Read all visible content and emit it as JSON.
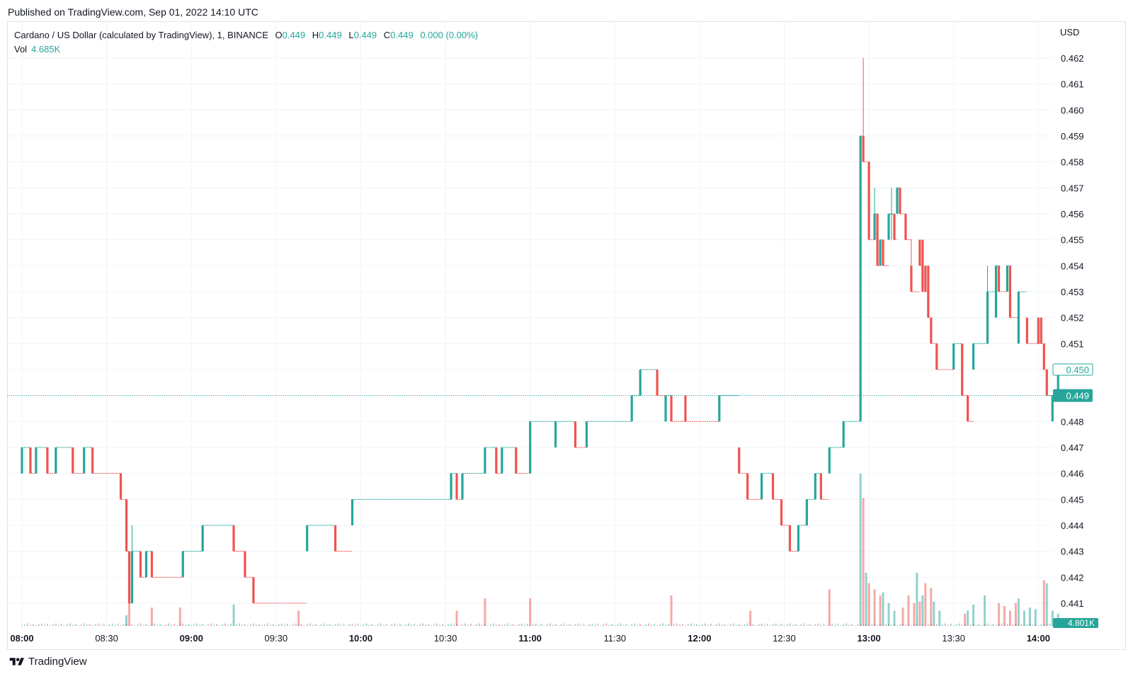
{
  "header": {
    "published": "Published on TradingView.com, Sep 01, 2022 14:10 UTC"
  },
  "legend": {
    "symbol": "Cardano / US Dollar (calculated by TradingView), 1, BINANCE",
    "o_label": "O",
    "o_value": "0.449",
    "h_label": "H",
    "h_value": "0.449",
    "l_label": "L",
    "l_value": "0.449",
    "c_label": "C",
    "c_value": "0.449",
    "change": "0.000 (0.00%)",
    "vol_label": "Vol",
    "vol_value": "4.685K"
  },
  "axis": {
    "currency": "USD",
    "last_price_label": "0.449",
    "prev_price_label": "0.450",
    "volume_label": "4.801K"
  },
  "footer": {
    "brand": "TradingView"
  },
  "colors": {
    "up": "#26a69a",
    "down": "#ef5350",
    "grid": "#f0f3fa"
  },
  "chart_data": {
    "type": "candlestick",
    "interval": "1 minute",
    "ylim": [
      0.4405,
      0.4625
    ],
    "y_ticks": [
      "0.441",
      "0.442",
      "0.443",
      "0.444",
      "0.445",
      "0.446",
      "0.447",
      "0.448",
      "0.449",
      "0.450",
      "0.451",
      "0.452",
      "0.453",
      "0.454",
      "0.455",
      "0.456",
      "0.457",
      "0.458",
      "0.459",
      "0.460",
      "0.461",
      "0.462"
    ],
    "x_ticks": [
      {
        "t": "08:00",
        "bold": true
      },
      {
        "t": "08:30",
        "bold": false
      },
      {
        "t": "09:00",
        "bold": true
      },
      {
        "t": "09:30",
        "bold": false
      },
      {
        "t": "10:00",
        "bold": true
      },
      {
        "t": "10:30",
        "bold": false
      },
      {
        "t": "11:00",
        "bold": true
      },
      {
        "t": "11:30",
        "bold": false
      },
      {
        "t": "12:00",
        "bold": true
      },
      {
        "t": "12:30",
        "bold": false
      },
      {
        "t": "13:00",
        "bold": true
      },
      {
        "t": "13:30",
        "bold": false
      },
      {
        "t": "14:00",
        "bold": true
      }
    ],
    "last_price": 0.449,
    "candles": [
      [
        0,
        0.446,
        0.447,
        0.446,
        0.447
      ],
      [
        3,
        0.447,
        0.447,
        0.446,
        0.446
      ],
      [
        5,
        0.446,
        0.447,
        0.446,
        0.447
      ],
      [
        9,
        0.447,
        0.447,
        0.446,
        0.446
      ],
      [
        12,
        0.446,
        0.447,
        0.446,
        0.447
      ],
      [
        18,
        0.447,
        0.447,
        0.446,
        0.446
      ],
      [
        22,
        0.446,
        0.447,
        0.446,
        0.447
      ],
      [
        25,
        0.447,
        0.447,
        0.446,
        0.446
      ],
      [
        35,
        0.446,
        0.446,
        0.445,
        0.445
      ],
      [
        37,
        0.445,
        0.445,
        0.443,
        0.443
      ],
      [
        38,
        0.443,
        0.443,
        0.441,
        0.441
      ],
      [
        39,
        0.441,
        0.444,
        0.441,
        0.443
      ],
      [
        42,
        0.443,
        0.443,
        0.442,
        0.442
      ],
      [
        44,
        0.442,
        0.443,
        0.442,
        0.443
      ],
      [
        46,
        0.443,
        0.443,
        0.442,
        0.442
      ],
      [
        57,
        0.442,
        0.443,
        0.442,
        0.443
      ],
      [
        64,
        0.443,
        0.444,
        0.443,
        0.444
      ],
      [
        75,
        0.444,
        0.444,
        0.443,
        0.443
      ],
      [
        79,
        0.443,
        0.443,
        0.442,
        0.442
      ],
      [
        82,
        0.442,
        0.442,
        0.441,
        0.441
      ],
      [
        101,
        0.443,
        0.444,
        0.443,
        0.444
      ],
      [
        111,
        0.444,
        0.444,
        0.443,
        0.443
      ],
      [
        117,
        0.444,
        0.445,
        0.444,
        0.445
      ],
      [
        152,
        0.445,
        0.446,
        0.445,
        0.446
      ],
      [
        154,
        0.446,
        0.446,
        0.445,
        0.445
      ],
      [
        156,
        0.445,
        0.446,
        0.445,
        0.446
      ],
      [
        164,
        0.446,
        0.447,
        0.446,
        0.447
      ],
      [
        168,
        0.447,
        0.447,
        0.446,
        0.446
      ],
      [
        170,
        0.446,
        0.447,
        0.446,
        0.447
      ],
      [
        175,
        0.447,
        0.447,
        0.446,
        0.446
      ],
      [
        180,
        0.446,
        0.448,
        0.446,
        0.448
      ],
      [
        189,
        0.447,
        0.448,
        0.447,
        0.448
      ],
      [
        196,
        0.448,
        0.448,
        0.447,
        0.447
      ],
      [
        200,
        0.447,
        0.448,
        0.447,
        0.448
      ],
      [
        216,
        0.448,
        0.449,
        0.448,
        0.449
      ],
      [
        219,
        0.449,
        0.45,
        0.449,
        0.45
      ],
      [
        225,
        0.45,
        0.45,
        0.449,
        0.449
      ],
      [
        228,
        0.448,
        0.449,
        0.448,
        0.449
      ],
      [
        230,
        0.449,
        0.449,
        0.448,
        0.448
      ],
      [
        235,
        0.449,
        0.449,
        0.448,
        0.448
      ],
      [
        247,
        0.448,
        0.449,
        0.448,
        0.449
      ],
      [
        254,
        0.447,
        0.447,
        0.446,
        0.446
      ],
      [
        257,
        0.446,
        0.446,
        0.445,
        0.445
      ],
      [
        262,
        0.445,
        0.446,
        0.445,
        0.446
      ],
      [
        266,
        0.446,
        0.446,
        0.445,
        0.445
      ],
      [
        269,
        0.445,
        0.445,
        0.444,
        0.444
      ],
      [
        272,
        0.444,
        0.444,
        0.443,
        0.443
      ],
      [
        275,
        0.443,
        0.444,
        0.443,
        0.444
      ],
      [
        278,
        0.444,
        0.445,
        0.444,
        0.445
      ],
      [
        281,
        0.445,
        0.446,
        0.445,
        0.446
      ],
      [
        283,
        0.446,
        0.446,
        0.445,
        0.445
      ],
      [
        286,
        0.446,
        0.447,
        0.446,
        0.447
      ],
      [
        291,
        0.447,
        0.448,
        0.447,
        0.448
      ],
      [
        297,
        0.448,
        0.459,
        0.448,
        0.459
      ],
      [
        298,
        0.459,
        0.462,
        0.458,
        0.458
      ],
      [
        300,
        0.458,
        0.458,
        0.455,
        0.455
      ],
      [
        302,
        0.455,
        0.457,
        0.455,
        0.456
      ],
      [
        303,
        0.456,
        0.456,
        0.454,
        0.454
      ],
      [
        304,
        0.454,
        0.455,
        0.454,
        0.455
      ],
      [
        305,
        0.455,
        0.455,
        0.454,
        0.454
      ],
      [
        307,
        0.455,
        0.456,
        0.455,
        0.456
      ],
      [
        308,
        0.456,
        0.457,
        0.455,
        0.456
      ],
      [
        309,
        0.456,
        0.456,
        0.455,
        0.455
      ],
      [
        310,
        0.456,
        0.457,
        0.456,
        0.457
      ],
      [
        311,
        0.457,
        0.457,
        0.456,
        0.456
      ],
      [
        313,
        0.456,
        0.456,
        0.455,
        0.455
      ],
      [
        315,
        0.454,
        0.455,
        0.453,
        0.453
      ],
      [
        318,
        0.455,
        0.455,
        0.454,
        0.454
      ],
      [
        319,
        0.455,
        0.455,
        0.453,
        0.453
      ],
      [
        320,
        0.454,
        0.454,
        0.453,
        0.453
      ],
      [
        321,
        0.454,
        0.454,
        0.452,
        0.452
      ],
      [
        322,
        0.452,
        0.452,
        0.451,
        0.451
      ],
      [
        324,
        0.451,
        0.451,
        0.45,
        0.45
      ],
      [
        330,
        0.45,
        0.451,
        0.45,
        0.451
      ],
      [
        333,
        0.451,
        0.451,
        0.449,
        0.449
      ],
      [
        335,
        0.449,
        0.449,
        0.448,
        0.448
      ],
      [
        337,
        0.45,
        0.451,
        0.45,
        0.451
      ],
      [
        342,
        0.451,
        0.454,
        0.451,
        0.453
      ],
      [
        345,
        0.452,
        0.454,
        0.452,
        0.454
      ],
      [
        346,
        0.454,
        0.454,
        0.453,
        0.453
      ],
      [
        349,
        0.453,
        0.454,
        0.453,
        0.454
      ],
      [
        350,
        0.454,
        0.454,
        0.452,
        0.452
      ],
      [
        353,
        0.451,
        0.453,
        0.451,
        0.453
      ],
      [
        356,
        0.452,
        0.452,
        0.451,
        0.451
      ],
      [
        360,
        0.452,
        0.452,
        0.451,
        0.451
      ],
      [
        361,
        0.452,
        0.452,
        0.451,
        0.451
      ],
      [
        362,
        0.451,
        0.451,
        0.45,
        0.45
      ],
      [
        363,
        0.45,
        0.45,
        0.449,
        0.449
      ],
      [
        365,
        0.448,
        0.449,
        0.448,
        0.449
      ],
      [
        367,
        0.449,
        0.45,
        0.449,
        0.45
      ]
    ],
    "volumes": [
      [
        37,
        0.7
      ],
      [
        38,
        2.6
      ],
      [
        46,
        1.2
      ],
      [
        56,
        1.2
      ],
      [
        75,
        1.4
      ],
      [
        98,
        1.0
      ],
      [
        154,
        1.0
      ],
      [
        164,
        1.8
      ],
      [
        180,
        1.8
      ],
      [
        230,
        2.0
      ],
      [
        258,
        1.0
      ],
      [
        286,
        2.4
      ],
      [
        297,
        10.0
      ],
      [
        298,
        8.4
      ],
      [
        299,
        3.5
      ],
      [
        300,
        2.8
      ],
      [
        302,
        2.4
      ],
      [
        304,
        2.0
      ],
      [
        305,
        2.2
      ],
      [
        307,
        1.5
      ],
      [
        309,
        1.0
      ],
      [
        312,
        1.2
      ],
      [
        314,
        2.0
      ],
      [
        316,
        1.5
      ],
      [
        317,
        3.5
      ],
      [
        318,
        1.6
      ],
      [
        319,
        2.0
      ],
      [
        320,
        2.8
      ],
      [
        322,
        2.5
      ],
      [
        323,
        1.6
      ],
      [
        325,
        1.0
      ],
      [
        334,
        0.8
      ],
      [
        335,
        1.0
      ],
      [
        337,
        1.4
      ],
      [
        341,
        2.0
      ],
      [
        346,
        1.5
      ],
      [
        348,
        1.3
      ],
      [
        350,
        1.0
      ],
      [
        352,
        1.5
      ],
      [
        353,
        1.8
      ],
      [
        355,
        1.0
      ],
      [
        357,
        1.2
      ],
      [
        359,
        1.1
      ],
      [
        362,
        3.0
      ],
      [
        363,
        2.8
      ],
      [
        365,
        1.0
      ],
      [
        367,
        0.8
      ]
    ]
  }
}
